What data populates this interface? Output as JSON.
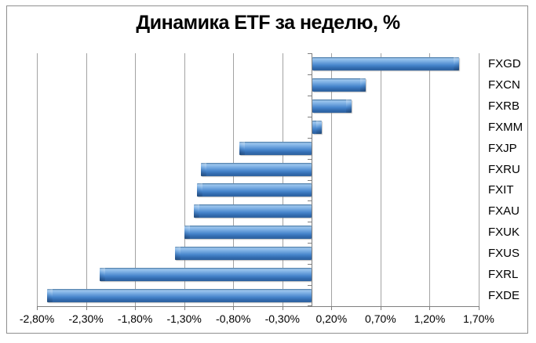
{
  "title": "Динамика ETF за неделю, %",
  "colors": {
    "background": "#ffffff",
    "frame_border": "#8f8f8f",
    "gridline": "#a3a3a3",
    "axis": "#7f7f7f",
    "bar_blue": "#3E7CC6",
    "bar_highlight": "#9CC5ED",
    "bar_shadow_edge": "#30639F",
    "text": "#000000"
  },
  "chart_data": {
    "type": "bar",
    "orientation": "horizontal",
    "title": "Динамика ETF за неделю, %",
    "unit": "%",
    "categories": [
      "FXGD",
      "FXCN",
      "FXRB",
      "FXMM",
      "FXJP",
      "FXRU",
      "FXIT",
      "FXAU",
      "FXUK",
      "FXUS",
      "FXRL",
      "FXDE"
    ],
    "values": [
      1.49,
      0.54,
      0.4,
      0.09,
      -0.74,
      -1.13,
      -1.17,
      -1.2,
      -1.3,
      -1.39,
      -2.16,
      -2.7
    ],
    "x_ticks": [
      -2.8,
      -2.3,
      -1.8,
      -1.3,
      -0.8,
      -0.3,
      0.2,
      0.7,
      1.2,
      1.7
    ],
    "x_tick_labels": [
      "-2,80%",
      "-2,30%",
      "-1,80%",
      "-1,30%",
      "-0,80%",
      "-0,30%",
      "0,20%",
      "0,70%",
      "1,20%",
      "1,70%"
    ],
    "xlim": [
      -2.8,
      1.7
    ],
    "grid": "vertical",
    "legend": false,
    "category_labels_position": "right",
    "baseline": 0
  }
}
